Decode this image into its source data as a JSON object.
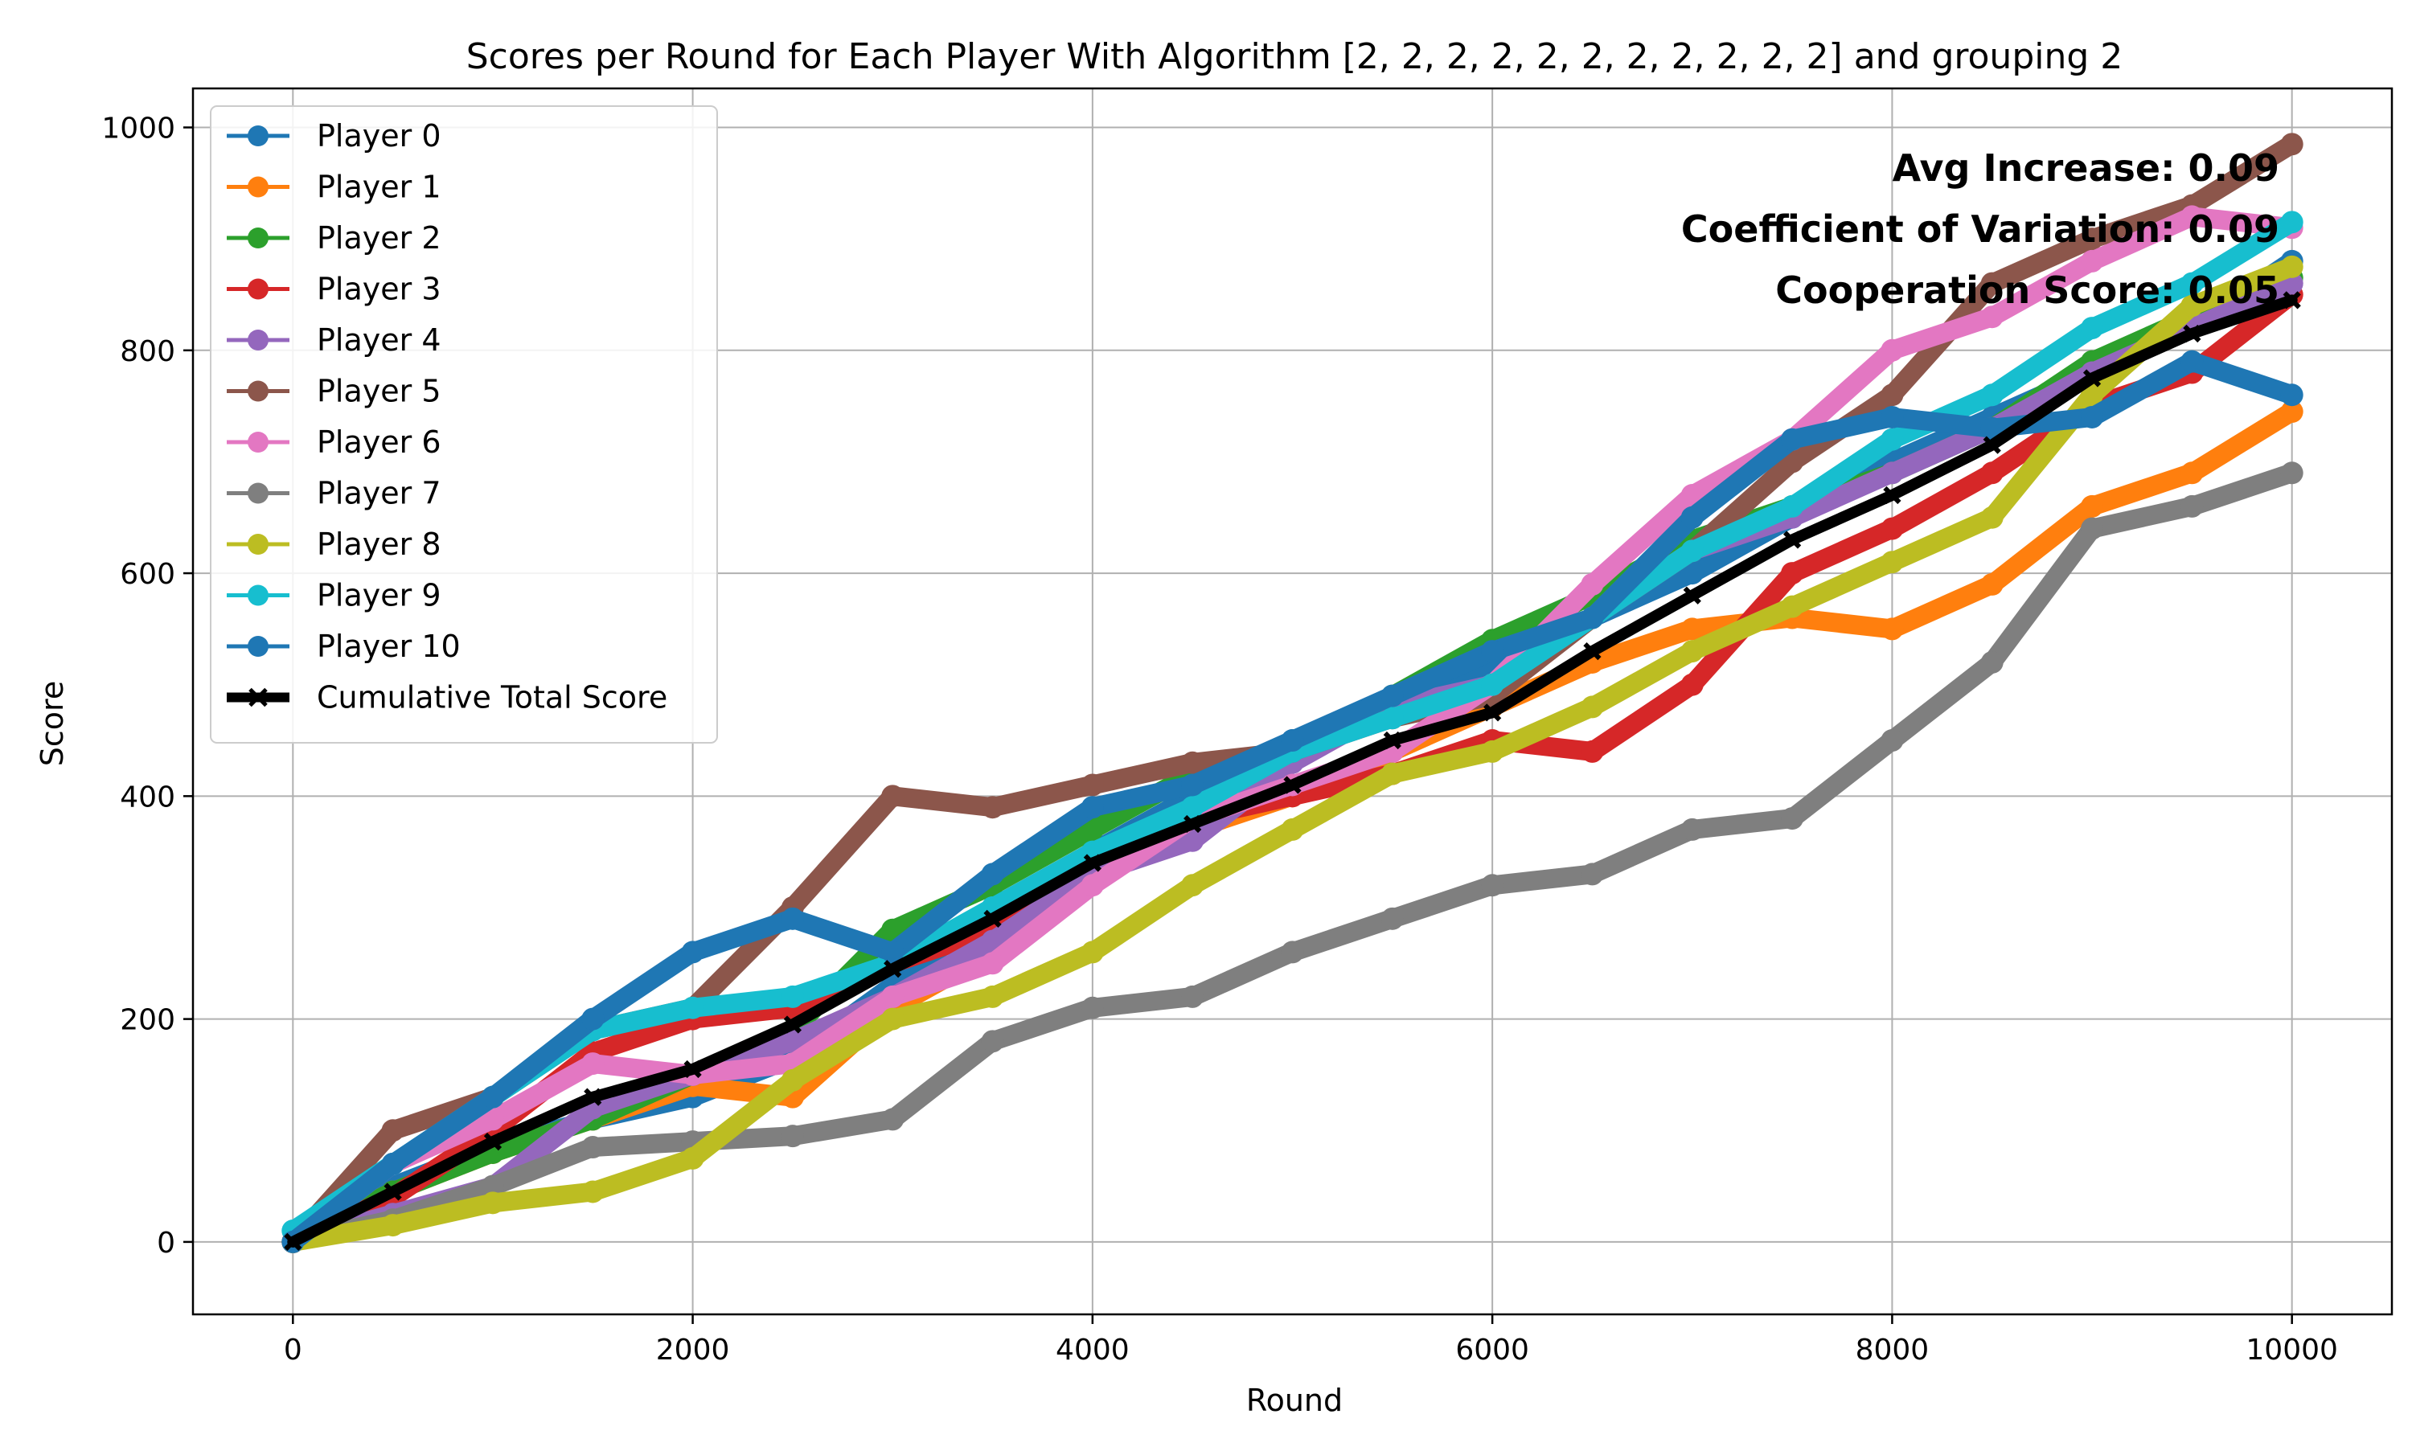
{
  "chart_data": {
    "type": "line",
    "title": "Scores per Round for Each Player With Algorithm [2, 2, 2, 2, 2, 2, 2, 2, 2, 2, 2] and grouping 2",
    "xlabel": "Round",
    "ylabel": "Score",
    "xlim": [
      -500,
      10500
    ],
    "ylim": [
      -65,
      1035
    ],
    "xticks": [
      0,
      2000,
      4000,
      6000,
      8000,
      10000
    ],
    "yticks": [
      0,
      200,
      400,
      600,
      800,
      1000
    ],
    "grid": true,
    "legend_position": "upper-left",
    "annotations": [
      "Avg Increase: 0.09",
      "Coefficient of Variation: 0.09",
      "Cooperation Score: 0.05"
    ],
    "series": [
      {
        "name": "Player 0",
        "color": "#1f77b4",
        "marker": "o",
        "x": [
          0,
          500,
          1000,
          1500,
          2000,
          2500,
          3000,
          3500,
          4000,
          4500,
          5000,
          5500,
          6000,
          6500,
          7000,
          7500,
          8000,
          8500,
          9000,
          9500,
          10000
        ],
        "y": [
          0,
          50,
          85,
          110,
          130,
          165,
          230,
          300,
          350,
          400,
          450,
          480,
          520,
          560,
          600,
          650,
          700,
          740,
          780,
          820,
          880
        ]
      },
      {
        "name": "Player 1",
        "color": "#ff7f0e",
        "marker": "o",
        "x": [
          0,
          500,
          1000,
          1500,
          2000,
          2500,
          3000,
          3500,
          4000,
          4500,
          5000,
          5500,
          6000,
          6500,
          7000,
          7500,
          8000,
          8500,
          9000,
          9500,
          10000
        ],
        "y": [
          0,
          45,
          80,
          110,
          140,
          130,
          210,
          260,
          340,
          370,
          400,
          440,
          480,
          520,
          550,
          560,
          550,
          590,
          660,
          690,
          745
        ]
      },
      {
        "name": "Player 2",
        "color": "#2ca02c",
        "marker": "o",
        "x": [
          0,
          500,
          1000,
          1500,
          2000,
          2500,
          3000,
          3500,
          4000,
          4500,
          5000,
          5500,
          6000,
          6500,
          7000,
          7500,
          8000,
          8500,
          9000,
          9500,
          10000
        ],
        "y": [
          0,
          45,
          80,
          110,
          150,
          190,
          280,
          320,
          370,
          420,
          440,
          490,
          540,
          580,
          630,
          660,
          690,
          730,
          790,
          830,
          865
        ]
      },
      {
        "name": "Player 3",
        "color": "#d62728",
        "marker": "o",
        "x": [
          0,
          500,
          1000,
          1500,
          2000,
          2500,
          3000,
          3500,
          4000,
          4500,
          5000,
          5500,
          6000,
          6500,
          7000,
          7500,
          8000,
          8500,
          9000,
          9500,
          10000
        ],
        "y": [
          0,
          40,
          100,
          170,
          200,
          210,
          250,
          280,
          330,
          380,
          400,
          420,
          450,
          440,
          500,
          600,
          640,
          690,
          750,
          780,
          850
        ]
      },
      {
        "name": "Player 4",
        "color": "#9467bd",
        "marker": "o",
        "x": [
          0,
          500,
          1000,
          1500,
          2000,
          2500,
          3000,
          3500,
          4000,
          4500,
          5000,
          5500,
          6000,
          6500,
          7000,
          7500,
          8000,
          8500,
          9000,
          9500,
          10000
        ],
        "y": [
          0,
          25,
          50,
          120,
          150,
          180,
          220,
          270,
          330,
          360,
          430,
          480,
          500,
          560,
          620,
          650,
          690,
          730,
          780,
          820,
          860
        ]
      },
      {
        "name": "Player 5",
        "color": "#8c564b",
        "marker": "o",
        "x": [
          0,
          500,
          1000,
          1500,
          2000,
          2500,
          3000,
          3500,
          4000,
          4500,
          5000,
          5500,
          6000,
          6500,
          7000,
          7500,
          8000,
          8500,
          9000,
          9500,
          10000
        ],
        "y": [
          0,
          100,
          130,
          190,
          210,
          300,
          400,
          390,
          410,
          430,
          440,
          470,
          490,
          560,
          620,
          700,
          760,
          860,
          900,
          930,
          985
        ]
      },
      {
        "name": "Player 6",
        "color": "#e377c2",
        "marker": "o",
        "x": [
          0,
          500,
          1000,
          1500,
          2000,
          2500,
          3000,
          3500,
          4000,
          4500,
          5000,
          5500,
          6000,
          6500,
          7000,
          7500,
          8000,
          8500,
          9000,
          9500,
          10000
        ],
        "y": [
          0,
          70,
          110,
          160,
          150,
          160,
          220,
          250,
          320,
          380,
          410,
          440,
          500,
          590,
          670,
          720,
          800,
          830,
          880,
          920,
          910
        ]
      },
      {
        "name": "Player 7",
        "color": "#7f7f7f",
        "marker": "o",
        "x": [
          0,
          500,
          1000,
          1500,
          2000,
          2500,
          3000,
          3500,
          4000,
          4500,
          5000,
          5500,
          6000,
          6500,
          7000,
          7500,
          8000,
          8500,
          9000,
          9500,
          10000
        ],
        "y": [
          0,
          20,
          50,
          85,
          90,
          95,
          110,
          180,
          210,
          220,
          260,
          290,
          320,
          330,
          370,
          380,
          450,
          520,
          640,
          660,
          690
        ]
      },
      {
        "name": "Player 8",
        "color": "#bcbd22",
        "marker": "o",
        "x": [
          0,
          500,
          1000,
          1500,
          2000,
          2500,
          3000,
          3500,
          4000,
          4500,
          5000,
          5500,
          6000,
          6500,
          7000,
          7500,
          8000,
          8500,
          9000,
          9500,
          10000
        ],
        "y": [
          0,
          15,
          35,
          45,
          75,
          145,
          200,
          220,
          260,
          320,
          370,
          420,
          440,
          480,
          530,
          570,
          610,
          650,
          760,
          840,
          875
        ]
      },
      {
        "name": "Player 9",
        "color": "#17becf",
        "marker": "o",
        "x": [
          0,
          500,
          1000,
          1500,
          2000,
          2500,
          3000,
          3500,
          4000,
          4500,
          5000,
          5500,
          6000,
          6500,
          7000,
          7500,
          8000,
          8500,
          9000,
          9500,
          10000
        ],
        "y": [
          10,
          70,
          130,
          190,
          210,
          220,
          250,
          300,
          350,
          390,
          440,
          470,
          500,
          560,
          620,
          660,
          720,
          760,
          820,
          860,
          915
        ]
      },
      {
        "name": "Player 10",
        "color": "#1f77b4",
        "marker": "o",
        "x": [
          0,
          500,
          1000,
          1500,
          2000,
          2500,
          3000,
          3500,
          4000,
          4500,
          5000,
          5500,
          6000,
          6500,
          7000,
          7500,
          8000,
          8500,
          9000,
          9500,
          10000
        ],
        "y": [
          0,
          70,
          130,
          200,
          260,
          290,
          260,
          330,
          390,
          410,
          450,
          490,
          530,
          560,
          650,
          720,
          740,
          730,
          740,
          790,
          760
        ]
      },
      {
        "name": "Cumulative Total Score",
        "color": "#000000",
        "marker": "x",
        "x": [
          0,
          500,
          1000,
          1500,
          2000,
          2500,
          3000,
          3500,
          4000,
          4500,
          5000,
          5500,
          6000,
          6500,
          7000,
          7500,
          8000,
          8500,
          9000,
          9500,
          10000
        ],
        "y": [
          0,
          45,
          90,
          130,
          155,
          195,
          245,
          290,
          340,
          375,
          410,
          450,
          475,
          530,
          580,
          630,
          670,
          715,
          775,
          815,
          845
        ]
      }
    ]
  }
}
